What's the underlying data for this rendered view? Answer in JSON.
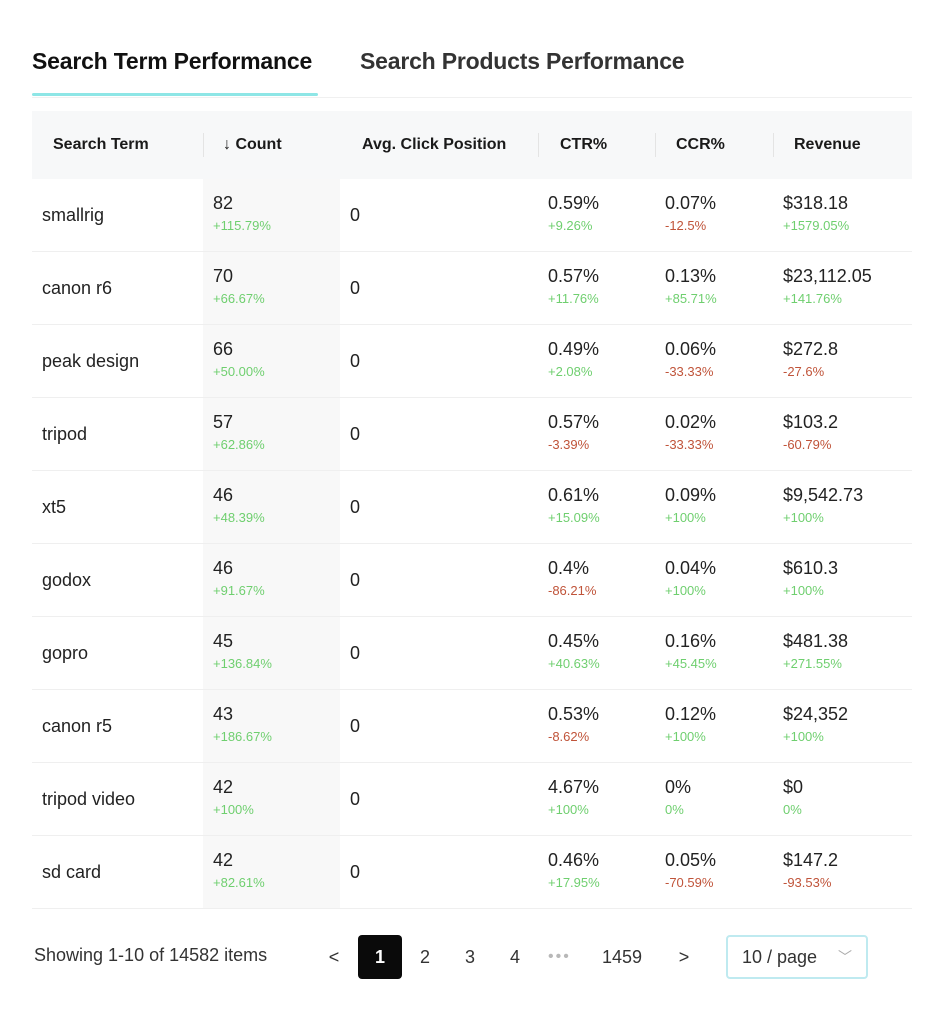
{
  "tabs": [
    {
      "label": "Search Term Performance",
      "active": true
    },
    {
      "label": "Search Products Performance",
      "active": false
    }
  ],
  "table": {
    "columns": {
      "term": "Search Term",
      "count": "Count",
      "count_sort_icon": "↓",
      "position": "Avg. Click Position",
      "ctr": "CTR%",
      "ccr": "CCR%",
      "revenue": "Revenue"
    },
    "rows": [
      {
        "term": "smallrig",
        "count": "82",
        "count_chg": "+115.79%",
        "position": "0",
        "ctr": "0.59%",
        "ctr_chg": "+9.26%",
        "ccr": "0.07%",
        "ccr_chg": "-12.5%",
        "revenue": "$318.18",
        "revenue_chg": "+1579.05%"
      },
      {
        "term": "canon r6",
        "count": "70",
        "count_chg": "+66.67%",
        "position": "0",
        "ctr": "0.57%",
        "ctr_chg": "+11.76%",
        "ccr": "0.13%",
        "ccr_chg": "+85.71%",
        "revenue": "$23,112.05",
        "revenue_chg": "+141.76%"
      },
      {
        "term": "peak design",
        "count": "66",
        "count_chg": "+50.00%",
        "position": "0",
        "ctr": "0.49%",
        "ctr_chg": "+2.08%",
        "ccr": "0.06%",
        "ccr_chg": "-33.33%",
        "revenue": "$272.8",
        "revenue_chg": "-27.6%"
      },
      {
        "term": "tripod",
        "count": "57",
        "count_chg": "+62.86%",
        "position": "0",
        "ctr": "0.57%",
        "ctr_chg": "-3.39%",
        "ccr": "0.02%",
        "ccr_chg": "-33.33%",
        "revenue": "$103.2",
        "revenue_chg": "-60.79%"
      },
      {
        "term": "xt5",
        "count": "46",
        "count_chg": "+48.39%",
        "position": "0",
        "ctr": "0.61%",
        "ctr_chg": "+15.09%",
        "ccr": "0.09%",
        "ccr_chg": "+100%",
        "revenue": "$9,542.73",
        "revenue_chg": "+100%"
      },
      {
        "term": "godox",
        "count": "46",
        "count_chg": "+91.67%",
        "position": "0",
        "ctr": "0.4%",
        "ctr_chg": "-86.21%",
        "ccr": "0.04%",
        "ccr_chg": "+100%",
        "revenue": "$610.3",
        "revenue_chg": "+100%"
      },
      {
        "term": "gopro",
        "count": "45",
        "count_chg": "+136.84%",
        "position": "0",
        "ctr": "0.45%",
        "ctr_chg": "+40.63%",
        "ccr": "0.16%",
        "ccr_chg": "+45.45%",
        "revenue": "$481.38",
        "revenue_chg": "+271.55%"
      },
      {
        "term": "canon r5",
        "count": "43",
        "count_chg": "+186.67%",
        "position": "0",
        "ctr": "0.53%",
        "ctr_chg": "-8.62%",
        "ccr": "0.12%",
        "ccr_chg": "+100%",
        "revenue": "$24,352",
        "revenue_chg": "+100%"
      },
      {
        "term": "tripod video",
        "count": "42",
        "count_chg": "+100%",
        "position": "0",
        "ctr": "4.67%",
        "ctr_chg": "+100%",
        "ccr": "0%",
        "ccr_chg": "0%",
        "revenue": "$0",
        "revenue_chg": "0%"
      },
      {
        "term": "sd card",
        "count": "42",
        "count_chg": "+82.61%",
        "position": "0",
        "ctr": "0.46%",
        "ctr_chg": "+17.95%",
        "ccr": "0.05%",
        "ccr_chg": "-70.59%",
        "revenue": "$147.2",
        "revenue_chg": "-93.53%"
      }
    ]
  },
  "colors": {
    "positive": "#6fcf6f",
    "negative": "#c0543a",
    "tab_ink": "#8ee6e6"
  },
  "pagination": {
    "summary": "Showing 1-10 of 14582 items",
    "prev": "<",
    "next": ">",
    "pages": [
      "1",
      "2",
      "3",
      "4"
    ],
    "ellipsis": "•••",
    "last_page": "1459",
    "current": "1",
    "page_size": "10 / page",
    "page_size_icon": "chevron-down-icon"
  }
}
